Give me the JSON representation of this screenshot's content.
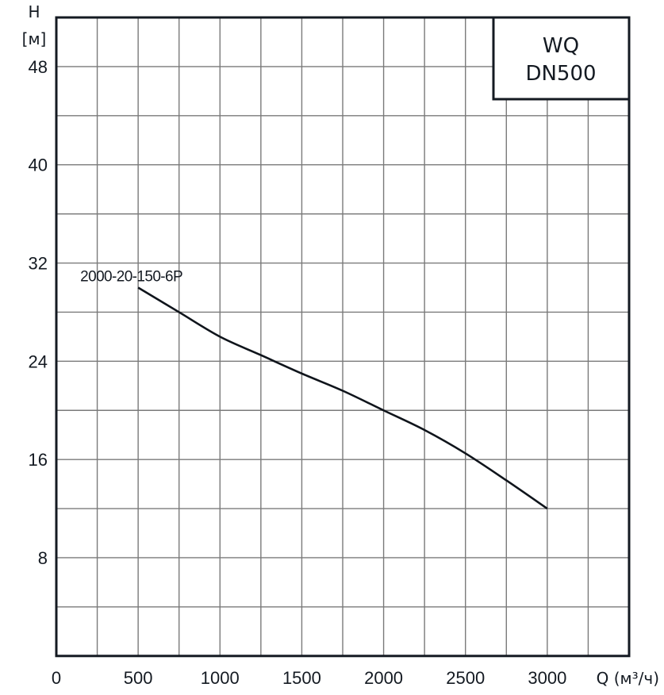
{
  "chart_data": {
    "type": "line",
    "title": "WQ DN500",
    "title_lines": [
      "WQ",
      "DN500"
    ],
    "xlabel": "Q (м³/ч)",
    "ylabel_lines": [
      "H",
      "[м]"
    ],
    "xlim": [
      0,
      3500
    ],
    "ylim": [
      0,
      52
    ],
    "x_ticks": [
      0,
      500,
      1000,
      1500,
      2000,
      2500,
      3000
    ],
    "y_ticks": [
      8,
      16,
      24,
      32,
      40,
      48
    ],
    "x_grid_step": 250,
    "y_grid_step": 4,
    "grid": true,
    "legend_position": "inline label at curve start",
    "series": [
      {
        "name": "2000-20-150-6P",
        "x": [
          500,
          750,
          1000,
          1250,
          1500,
          1750,
          2000,
          2250,
          2500,
          2750,
          3000
        ],
        "y": [
          30.0,
          28.0,
          26.0,
          24.5,
          23.0,
          21.6,
          20.0,
          18.4,
          16.5,
          14.3,
          12.0
        ]
      }
    ]
  },
  "colors": {
    "axis": "#141a22",
    "grid": "#7a7a7a",
    "curve": "#0f141b",
    "background": "#ffffff"
  }
}
